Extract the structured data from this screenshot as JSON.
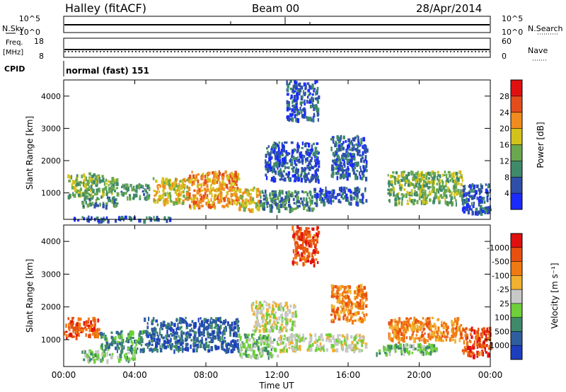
{
  "header": {
    "station": "Halley (fitACF)",
    "beam": "Beam 00",
    "date": "28/Apr/2014"
  },
  "top_panels": {
    "nsky_label": "N.Sky",
    "nsearch_label": "N.Search",
    "freq_label_1": "Freq.",
    "freq_label_2": "[MHz]",
    "nave_label": "Nave",
    "cpid_label": "CPID",
    "cpid_value": "normal (fast) 151",
    "noise_ticks_left": [
      "10^5",
      "10^0"
    ],
    "noise_ticks_right": [
      "10^5",
      "10^0"
    ],
    "freq_ticks": [
      "18",
      "8"
    ],
    "nave_ticks": [
      "60",
      "0"
    ]
  },
  "chart_data": [
    {
      "type": "heatmap",
      "title": "",
      "xlabel": "Time UT",
      "ylabel": "Slant Range [km]",
      "x_unit": "hours UT",
      "xlim": [
        0,
        24
      ],
      "ylim": [
        180,
        4500
      ],
      "x_ticks": [
        "00:00",
        "04:00",
        "08:00",
        "12:00",
        "16:00",
        "20:00",
        "00:00"
      ],
      "y_ticks": [
        "1000",
        "2000",
        "3000",
        "4000"
      ],
      "colorbar": {
        "label": "Power [dB]",
        "ticks": [
          "4",
          "8",
          "12",
          "16",
          "20",
          "24",
          "28"
        ],
        "colors": [
          "#1a2bff",
          "#2f50a8",
          "#3f8a6a",
          "#6aa84f",
          "#d4c21c",
          "#f08c1e",
          "#e34d1b",
          "#e01010"
        ]
      },
      "regions": [
        {
          "t0": 0.2,
          "t1": 2.2,
          "r0": 900,
          "r1": 1650,
          "level": 3
        },
        {
          "t0": 1.0,
          "t1": 3.0,
          "r0": 600,
          "r1": 900,
          "level": 2
        },
        {
          "t0": 2.2,
          "t1": 3.0,
          "r0": 1000,
          "r1": 1500,
          "level": 3
        },
        {
          "t0": 3.2,
          "t1": 4.8,
          "r0": 850,
          "r1": 1300,
          "level": 2
        },
        {
          "t0": 5.0,
          "t1": 7.0,
          "r0": 700,
          "r1": 1500,
          "level": 4
        },
        {
          "t0": 7.0,
          "t1": 9.8,
          "r0": 600,
          "r1": 1700,
          "level": 5
        },
        {
          "t0": 9.8,
          "t1": 11.0,
          "r0": 500,
          "r1": 1200,
          "level": 4
        },
        {
          "t0": 11.0,
          "t1": 14.0,
          "r0": 500,
          "r1": 1100,
          "level": 2
        },
        {
          "t0": 11.3,
          "t1": 14.3,
          "r0": 1400,
          "r1": 2600,
          "level": 1
        },
        {
          "t0": 12.5,
          "t1": 14.3,
          "r0": 3300,
          "r1": 4500,
          "level": 1
        },
        {
          "t0": 14.0,
          "t1": 17.0,
          "r0": 700,
          "r1": 1200,
          "level": 1
        },
        {
          "t0": 15.0,
          "t1": 17.0,
          "r0": 1500,
          "r1": 2800,
          "level": 1
        },
        {
          "t0": 18.2,
          "t1": 22.4,
          "r0": 700,
          "r1": 1700,
          "level": 3
        },
        {
          "t0": 22.4,
          "t1": 24.0,
          "r0": 400,
          "r1": 1300,
          "level": 1
        },
        {
          "t0": 0.5,
          "t1": 6.0,
          "r0": 180,
          "r1": 300,
          "level": 1
        }
      ]
    },
    {
      "type": "heatmap",
      "title": "",
      "xlabel": "Time UT",
      "ylabel": "Slant Range [km]",
      "x_unit": "hours UT",
      "xlim": [
        0,
        24
      ],
      "ylim": [
        180,
        4500
      ],
      "x_ticks": [
        "00:00",
        "04:00",
        "08:00",
        "12:00",
        "16:00",
        "20:00",
        "00:00"
      ],
      "y_ticks": [
        "1000",
        "2000",
        "3000",
        "4000"
      ],
      "colorbar": {
        "label": "Velocity [m s⁻¹]",
        "ticks": [
          "1000",
          "500",
          "100",
          "25",
          "-25",
          "-100",
          "-500",
          "-1000"
        ],
        "colors": [
          "#1d3fbf",
          "#2f5e9e",
          "#3f8a6a",
          "#6ecf3a",
          "#c8c8c8",
          "#f0b030",
          "#f07a12",
          "#e85010",
          "#e01010"
        ]
      },
      "regions": [
        {
          "t0": 0.0,
          "t1": 2.0,
          "r0": 1100,
          "r1": 1700,
          "level": 7
        },
        {
          "t0": 2.0,
          "t1": 4.5,
          "r0": 700,
          "r1": 1300,
          "level": 2
        },
        {
          "t0": 1.0,
          "t1": 4.0,
          "r0": 400,
          "r1": 700,
          "level": 3
        },
        {
          "t0": 4.5,
          "t1": 9.8,
          "r0": 700,
          "r1": 1700,
          "level": 1
        },
        {
          "t0": 9.8,
          "t1": 12.0,
          "r0": 500,
          "r1": 1200,
          "level": 3
        },
        {
          "t0": 10.5,
          "t1": 13.0,
          "r0": 1300,
          "r1": 2200,
          "level": 4
        },
        {
          "t0": 12.0,
          "t1": 17.0,
          "r0": 700,
          "r1": 1200,
          "level": 4
        },
        {
          "t0": 12.8,
          "t1": 14.3,
          "r0": 3300,
          "r1": 4500,
          "level": 7
        },
        {
          "t0": 15.0,
          "t1": 17.0,
          "r0": 1600,
          "r1": 2700,
          "level": 6
        },
        {
          "t0": 18.2,
          "t1": 22.4,
          "r0": 1000,
          "r1": 1700,
          "level": 6
        },
        {
          "t0": 17.5,
          "t1": 21.0,
          "r0": 600,
          "r1": 900,
          "level": 3
        },
        {
          "t0": 22.4,
          "t1": 24.0,
          "r0": 500,
          "r1": 1400,
          "level": 7
        }
      ]
    }
  ]
}
